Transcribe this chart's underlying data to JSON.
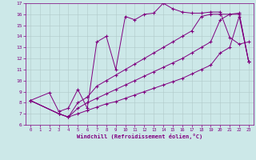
{
  "xlabel": "Windchill (Refroidissement éolien,°C)",
  "bg_color": "#cce8e8",
  "line_color": "#800080",
  "grid_color": "#b0c8c8",
  "xlim": [
    -0.5,
    23.5
  ],
  "ylim": [
    6,
    17
  ],
  "yticks": [
    6,
    7,
    8,
    9,
    10,
    11,
    12,
    13,
    14,
    15,
    16,
    17
  ],
  "xticks": [
    0,
    1,
    2,
    3,
    4,
    5,
    6,
    7,
    8,
    9,
    10,
    11,
    12,
    13,
    14,
    15,
    16,
    17,
    18,
    19,
    20,
    21,
    22,
    23
  ],
  "line1_x": [
    0,
    2,
    3,
    4,
    5,
    6,
    7,
    8,
    9,
    10,
    11,
    12,
    13,
    14,
    15,
    16,
    17,
    18,
    19,
    20,
    21,
    22,
    23
  ],
  "line1_y": [
    8.2,
    8.9,
    7.2,
    7.5,
    9.2,
    7.5,
    13.5,
    14.0,
    11.0,
    15.8,
    15.5,
    16.0,
    16.1,
    17.0,
    16.5,
    16.2,
    16.1,
    16.1,
    16.2,
    16.2,
    13.9,
    13.3,
    13.5
  ],
  "line2_x": [
    0,
    3,
    4,
    5,
    6,
    7,
    8,
    9,
    10,
    11,
    12,
    13,
    14,
    15,
    16,
    17,
    18,
    19,
    20,
    21,
    22,
    23
  ],
  "line2_y": [
    8.2,
    7.0,
    6.7,
    8.0,
    8.5,
    9.5,
    10.0,
    10.5,
    11.0,
    11.5,
    12.0,
    12.5,
    13.0,
    13.5,
    14.0,
    14.5,
    15.8,
    16.0,
    16.0,
    16.0,
    16.1,
    11.7
  ],
  "line3_x": [
    0,
    3,
    4,
    5,
    6,
    7,
    8,
    9,
    10,
    11,
    12,
    13,
    14,
    15,
    16,
    17,
    18,
    19,
    20,
    21,
    22,
    23
  ],
  "line3_y": [
    8.2,
    7.0,
    6.7,
    7.5,
    8.0,
    8.4,
    8.8,
    9.2,
    9.6,
    10.0,
    10.4,
    10.8,
    11.2,
    11.6,
    12.0,
    12.5,
    13.0,
    13.5,
    15.5,
    16.0,
    16.0,
    11.7
  ],
  "line4_x": [
    0,
    3,
    4,
    5,
    6,
    7,
    8,
    9,
    10,
    11,
    12,
    13,
    14,
    15,
    16,
    17,
    18,
    19,
    20,
    21,
    22,
    23
  ],
  "line4_y": [
    8.2,
    7.0,
    6.7,
    7.0,
    7.3,
    7.6,
    7.9,
    8.1,
    8.4,
    8.7,
    9.0,
    9.3,
    9.6,
    9.9,
    10.2,
    10.6,
    11.0,
    11.4,
    12.5,
    13.0,
    15.8,
    11.7
  ]
}
